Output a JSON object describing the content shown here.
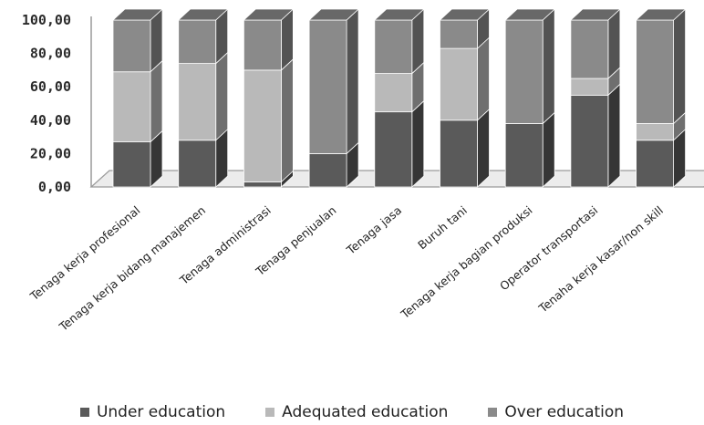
{
  "chart_data": {
    "type": "bar",
    "stacked": true,
    "three_d": true,
    "categories": [
      "Tenaga kerja profesional",
      "Tenaga kerja bidang manajemen",
      "Tenaga administrasi",
      "Tenaga penjualan",
      "Tenaga jasa",
      "Buruh tani",
      "Tenaga kerja bagian produksi",
      "Operator transportasi",
      "Tenaha kerja kasar/non skill"
    ],
    "series": [
      {
        "name": "Under education",
        "color": "#5a5a5a",
        "values": [
          27,
          28,
          3,
          20,
          45,
          40,
          38,
          55,
          28
        ]
      },
      {
        "name": "Adequated education",
        "color": "#b9b9b9",
        "values": [
          42,
          46,
          67,
          0,
          23,
          43,
          0,
          10,
          10
        ]
      },
      {
        "name": "Over education",
        "color": "#8a8a8a",
        "values": [
          31,
          26,
          30,
          80,
          32,
          17,
          62,
          35,
          62
        ]
      }
    ],
    "yticks": [
      "0,00",
      "20,00",
      "40,00",
      "60,00",
      "80,00",
      "100,00"
    ],
    "ylim": [
      0,
      100
    ],
    "legend_position": "bottom"
  }
}
